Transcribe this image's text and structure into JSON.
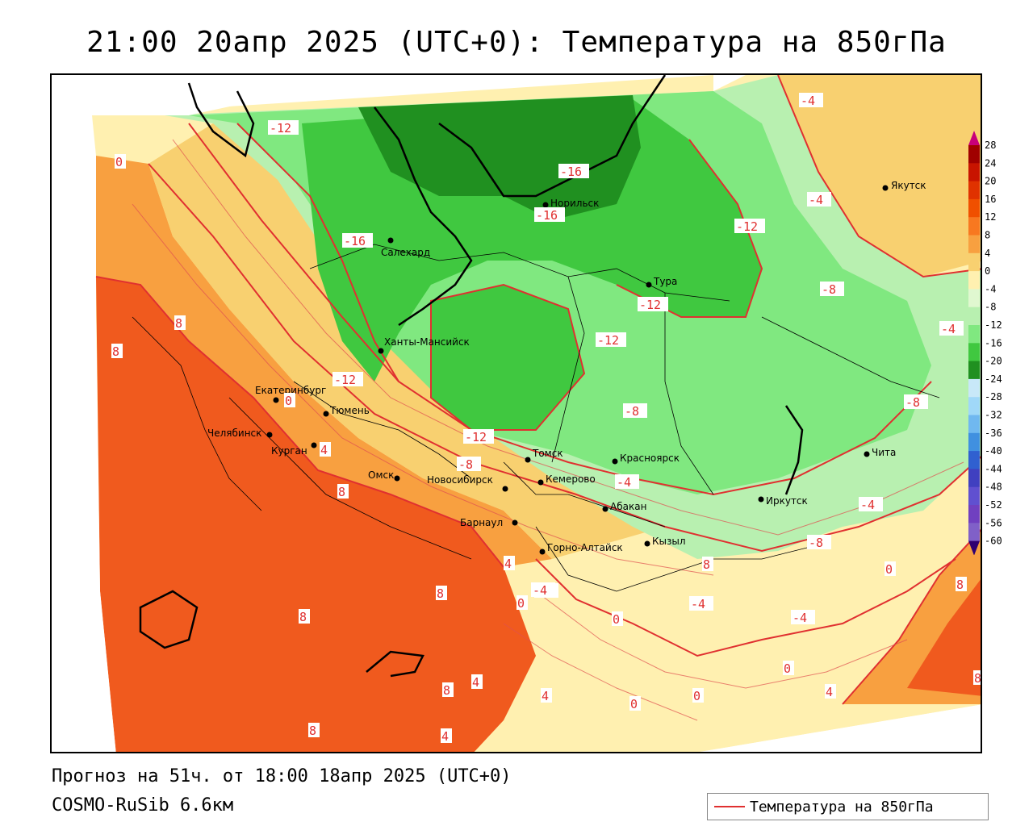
{
  "title": "21:00 20апр 2025 (UTC+0): Температура на 850гПа",
  "forecast_line": "Прогноз на 51ч. от 18:00 18апр 2025 (UTC+0)",
  "model_line": "COSMO-RuSib 6.6км",
  "legend": {
    "label": "Температура на 850гПа",
    "line_color": "#e03030"
  },
  "colorbar": {
    "ticks": [
      "28",
      "24",
      "20",
      "16",
      "12",
      "8",
      "4",
      "0",
      "-4",
      "-8",
      "-12",
      "-16",
      "-20",
      "-24",
      "-28",
      "-32",
      "-36",
      "-40",
      "-44",
      "-48",
      "-52",
      "-56",
      "-60"
    ],
    "colors": [
      "#c8007a",
      "#a00000",
      "#c81400",
      "#e03200",
      "#f05000",
      "#f87820",
      "#f8a040",
      "#f8d070",
      "#fff0b0",
      "#e0f8d0",
      "#b8f0b0",
      "#80e880",
      "#40c840",
      "#209020",
      "#c8e8f8",
      "#a0d8f8",
      "#70b8f0",
      "#4090e0",
      "#3060d0",
      "#4040c0",
      "#6050d0",
      "#7040c0",
      "#8060c8",
      "#5010a0",
      "#300070"
    ]
  },
  "cities": [
    {
      "name": "Норильск"
    },
    {
      "name": "Салехард"
    },
    {
      "name": "Якутск"
    },
    {
      "name": "Тура"
    },
    {
      "name": "Ханты-Мансийск"
    },
    {
      "name": "Екатеринбург"
    },
    {
      "name": "Тюмень"
    },
    {
      "name": "Челябинск"
    },
    {
      "name": "Курган"
    },
    {
      "name": "Омск"
    },
    {
      "name": "Новосибирск"
    },
    {
      "name": "Томск"
    },
    {
      "name": "Кемерово"
    },
    {
      "name": "Красноярск"
    },
    {
      "name": "Абакан"
    },
    {
      "name": "Барнаул"
    },
    {
      "name": "Горно-Алтайск"
    },
    {
      "name": "Кызыл"
    },
    {
      "name": "Иркутск"
    },
    {
      "name": "Чита"
    }
  ],
  "isotherm_labels": [
    "-12",
    "-16",
    "-16",
    "-16",
    "-16",
    "-12",
    "-12",
    "-12",
    "-12",
    "-12",
    "-12",
    "-8",
    "-8",
    "-8",
    "-8",
    "-8",
    "-4",
    "-4",
    "-4",
    "-4",
    "-4",
    "-4",
    "-4",
    "-4",
    "0",
    "0",
    "0",
    "0",
    "0",
    "0",
    "0",
    "0",
    "4",
    "4",
    "4",
    "4",
    "4",
    "4",
    "8",
    "8",
    "8",
    "8",
    "8",
    "8",
    "8",
    "8",
    "8",
    "8",
    "-4"
  ]
}
